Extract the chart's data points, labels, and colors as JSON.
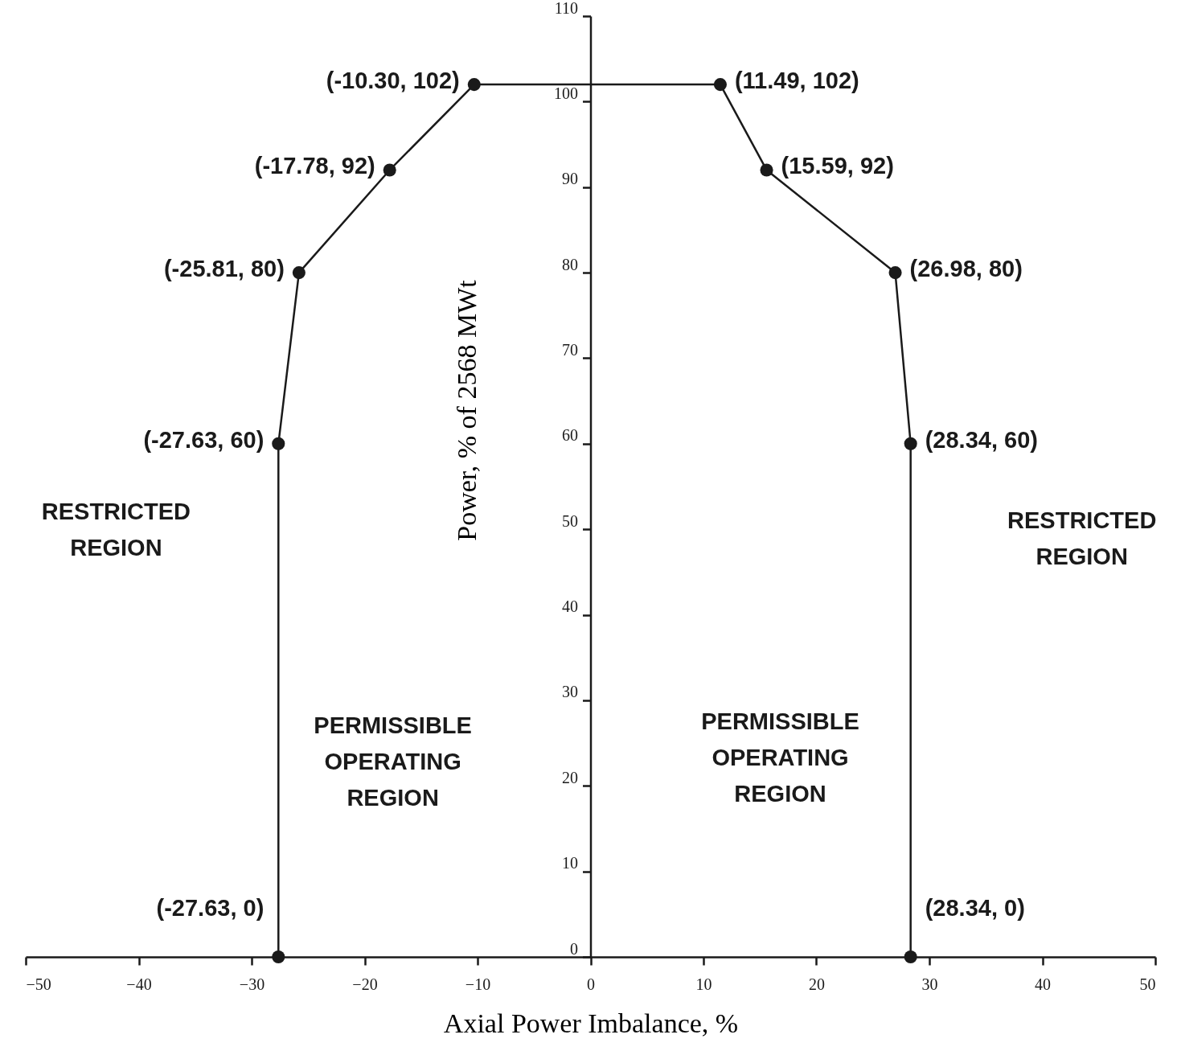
{
  "chart_data": {
    "type": "line",
    "xlabel": "Axial Power Imbalance, %",
    "ylabel": "Power, % of 2568 MWt",
    "x": [
      -27.63,
      -27.63,
      -25.81,
      -17.78,
      -10.3,
      11.49,
      15.59,
      26.98,
      28.34,
      28.34
    ],
    "series": [
      {
        "color": "#1a1a1a",
        "values": [
          0,
          60,
          80,
          92,
          102,
          102,
          92,
          80,
          60,
          0
        ],
        "value_labels": [
          "(-27.63, 0)",
          "(-27.63, 60)",
          "(-25.81, 80)",
          "(-17.78, 92)",
          "(-10.30, 102)",
          "(11.49, 102)",
          "(15.59, 92)",
          "(26.98, 80)",
          "(28.34, 60)",
          "(28.34, 0)"
        ]
      }
    ],
    "xlim": [
      -50,
      50
    ],
    "xticks": [
      -50,
      -40,
      -30,
      -20,
      -10,
      0,
      10,
      20,
      30,
      40,
      50
    ],
    "ylim": [
      0,
      110
    ],
    "yticks": [
      0,
      10,
      20,
      30,
      40,
      50,
      60,
      70,
      80,
      90,
      100,
      110
    ],
    "annotations": [
      "RESTRICTED\nREGION",
      "PERMISSIBLE\nOPERATING\nREGION",
      "PERMISSIBLE\nOPERATING\nREGION",
      "RESTRICTED\nREGION"
    ],
    "grid": false,
    "marker": "circle",
    "line_style": "solid"
  }
}
